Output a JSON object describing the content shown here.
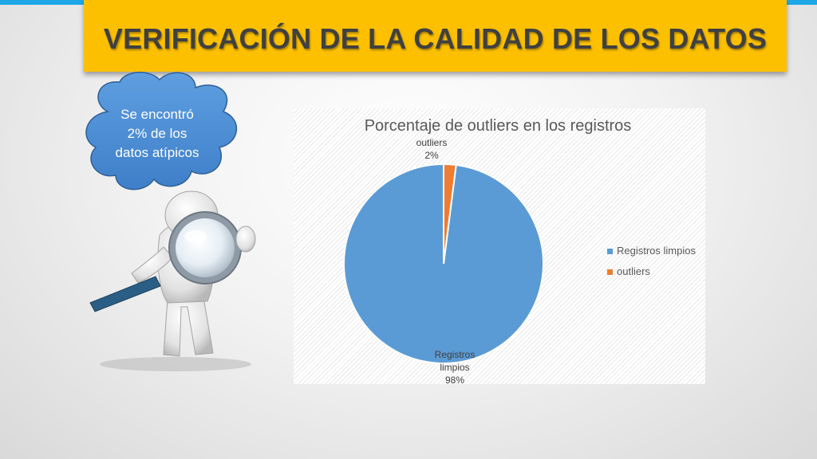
{
  "slide": {
    "title": "VERIFICACIÓN DE LA CALIDAD DE LOS DATOS",
    "callout_line1": "Se encontró",
    "callout_line2": "2% de los",
    "callout_line3": "datos atípicos",
    "accent_color": "#1ea7e6",
    "banner_color": "#fcc000"
  },
  "chart_data": {
    "type": "pie",
    "title": "Porcentaje de outliers en los registros",
    "categories": [
      "Registros limpios",
      "outliers"
    ],
    "values": [
      98,
      2
    ],
    "colors": [
      "#5b9bd5",
      "#ed7d31"
    ],
    "data_labels": [
      {
        "lines": [
          "Registros",
          "limpios",
          "98%"
        ]
      },
      {
        "lines": [
          "outliers",
          "2%"
        ]
      }
    ],
    "legend": {
      "position": "right",
      "entries": [
        "Registros limpios",
        "outliers"
      ]
    }
  }
}
